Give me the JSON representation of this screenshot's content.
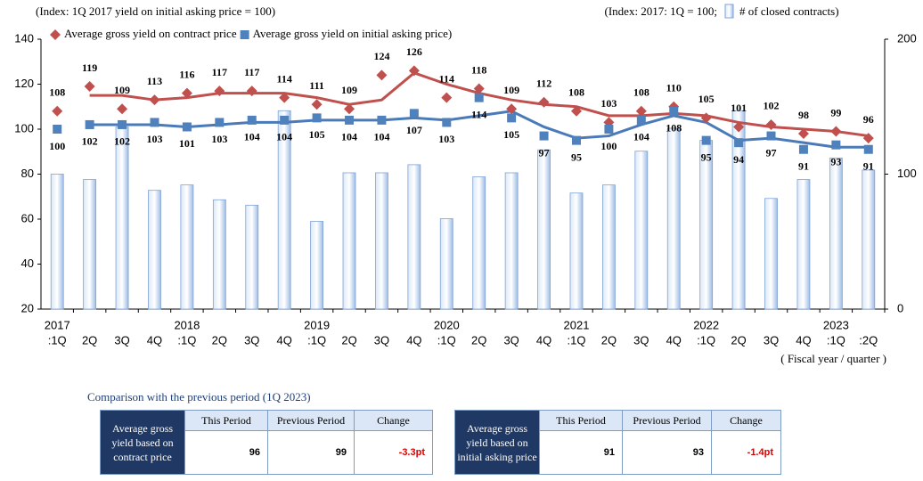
{
  "chart_data": {
    "type": "bar-line",
    "left_axis_label": "(Index: 1Q 2017 yield on initial asking price = 100)",
    "right_axis_label_prefix": "(Index: 2017: 1Q = 100;",
    "x_axis_label": "( Fiscal year / quarter )",
    "categories": [
      ":1Q",
      "2Q",
      "3Q",
      "4Q",
      ":1Q",
      "2Q",
      "3Q",
      "4Q",
      ":1Q",
      "2Q",
      "3Q",
      "4Q",
      ":1Q",
      "2Q",
      "3Q",
      "4Q",
      ":1Q",
      "2Q",
      "3Q",
      "4Q",
      ":1Q",
      "2Q",
      "3Q",
      "4Q",
      ":1Q",
      ":2Q"
    ],
    "year_labels": [
      "2017",
      null,
      null,
      null,
      "2018",
      null,
      null,
      null,
      "2019",
      null,
      null,
      null,
      "2020",
      null,
      null,
      null,
      "2021",
      null,
      null,
      null,
      "2022",
      null,
      null,
      null,
      "2023",
      null
    ],
    "ylim": [
      20,
      140
    ],
    "yticks": [
      20,
      40,
      60,
      80,
      100,
      120,
      140
    ],
    "y2lim": [
      0,
      200
    ],
    "y2ticks": [
      0,
      100,
      200
    ],
    "series": [
      {
        "name": "# of closed contracts)",
        "type": "bar",
        "axis": "y2",
        "color": "#aec8ea",
        "values": [
          100,
          96,
          135,
          88,
          92,
          81,
          77,
          147,
          65,
          101,
          101,
          107,
          67,
          98,
          101,
          118,
          86,
          92,
          117,
          134,
          125,
          147,
          82,
          96,
          112,
          103
        ]
      },
      {
        "name": "Average gross yield on contract price",
        "type": "scatter",
        "color": "#c0504d",
        "label_color": "#a9433f",
        "values": [
          108,
          119,
          109,
          113,
          116,
          117,
          117,
          114,
          111,
          109,
          124,
          126,
          114,
          118,
          109,
          112,
          108,
          103,
          108,
          110,
          105,
          101,
          102,
          98,
          99,
          96
        ]
      },
      {
        "name": "Average gross yield on initial asking price)",
        "type": "scatter",
        "color": "#4f81bd",
        "label_color": "#2f5689",
        "values": [
          100,
          102,
          102,
          103,
          101,
          103,
          104,
          104,
          105,
          104,
          104,
          107,
          103,
          114,
          105,
          97,
          95,
          100,
          104,
          108,
          95,
          94,
          97,
          91,
          93,
          91
        ]
      }
    ],
    "trend_lines": [
      {
        "color": "#c0504d",
        "values": [
          null,
          115,
          115,
          113,
          114,
          116,
          116,
          116,
          114,
          111,
          113,
          125,
          120,
          116,
          113,
          111,
          110,
          106,
          106,
          107,
          106,
          103,
          101,
          100,
          99,
          97
        ]
      },
      {
        "color": "#4a7ab8",
        "values": [
          null,
          102,
          102,
          102,
          101,
          102,
          103,
          103,
          104,
          104,
          104,
          105,
          104,
          106,
          108,
          101,
          96,
          97,
          102,
          106,
          103,
          95,
          96,
          94,
          92,
          92
        ]
      }
    ]
  },
  "comparison": {
    "title": "Comparison with the previous period (1Q 2023)",
    "tables": [
      {
        "label": "Average gross yield based on contract price",
        "headers": [
          "This Period",
          "Previous Period",
          "Change"
        ],
        "cells": [
          96,
          99,
          "-3.3pt"
        ]
      },
      {
        "label": "Average gross yield based on initial asking price",
        "headers": [
          "This Period",
          "Previous Period",
          "Change"
        ],
        "cells": [
          91,
          93,
          "-1.4pt"
        ]
      }
    ]
  }
}
